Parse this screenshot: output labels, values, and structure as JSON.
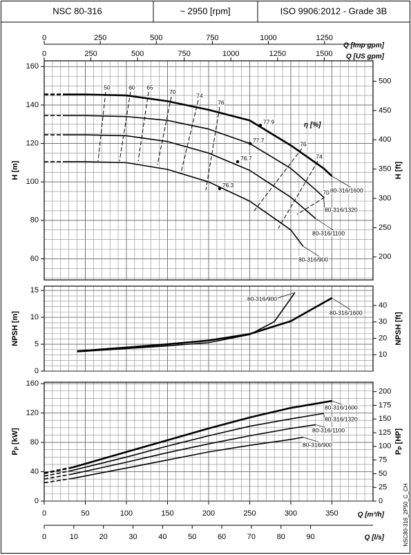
{
  "header": {
    "model": "NSC 80-316",
    "speed": "~ 2950 [rpm]",
    "standard": "ISO 9906:2012 - Grade 3B"
  },
  "code": "NSC80-316_2P50_C_CH",
  "x_axes": [
    {
      "label": "Q [Imp gpm]",
      "xlim": [
        0,
        1466.5
      ],
      "xticks": [
        0,
        250,
        500,
        750,
        1000,
        1250
      ]
    },
    {
      "label": "Q [US gpm]",
      "xlim": [
        0,
        1761.2
      ],
      "xticks": [
        0,
        250,
        500,
        750,
        1000,
        1250,
        1500
      ]
    },
    {
      "label": "Q [m³/h]",
      "xlim": [
        0,
        400
      ],
      "xticks": [
        0,
        50,
        100,
        150,
        200,
        250,
        300,
        350
      ]
    },
    {
      "label": "Q [l/s]",
      "xlim": [
        0,
        111.1
      ],
      "xticks": [
        0,
        10,
        20,
        30,
        40,
        50,
        60,
        70,
        80,
        90
      ]
    }
  ],
  "chart_data": [
    {
      "type": "line",
      "ylabel": "H [m]",
      "y2label": "H [ft]",
      "xlim": [
        0,
        400
      ],
      "ylim": [
        49,
        163
      ],
      "yticks": [
        60,
        80,
        100,
        120,
        140,
        160
      ],
      "y2lim": [
        160.8,
        534.8
      ],
      "y2ticks": [
        200,
        250,
        300,
        350,
        400,
        450,
        500
      ],
      "grid": true,
      "grid_step": [
        10,
        5
      ],
      "dashed_first_segment": true,
      "series": [
        {
          "name": "80-316/1600",
          "color": "#000000",
          "width": 2.6,
          "x": [
            0,
            25,
            50,
            100,
            150,
            200,
            250,
            300,
            340,
            350
          ],
          "values": [
            145.5,
            145.5,
            145.5,
            145,
            142,
            137.5,
            132,
            119,
            107,
            103
          ]
        },
        {
          "name": "80-316/1320",
          "color": "#000000",
          "width": 1.6,
          "x": [
            0,
            25,
            50,
            100,
            150,
            200,
            250,
            300,
            330,
            340
          ],
          "values": [
            134.5,
            134.5,
            134.5,
            134,
            132,
            127.5,
            120,
            107,
            96,
            92
          ]
        },
        {
          "name": "80-316/1100",
          "color": "#000000",
          "width": 1.6,
          "x": [
            0,
            25,
            50,
            100,
            150,
            200,
            250,
            300,
            330
          ],
          "values": [
            124.5,
            124.5,
            124.5,
            124,
            121,
            115,
            106,
            92,
            81
          ]
        },
        {
          "name": "80-316/900",
          "color": "#000000",
          "width": 1.6,
          "x": [
            0,
            25,
            50,
            100,
            150,
            200,
            250,
            300,
            315
          ],
          "values": [
            110.5,
            110.5,
            110.5,
            110,
            106.5,
            100,
            90,
            75,
            66.5
          ]
        }
      ],
      "efficiency": {
        "label": "η [%]",
        "lines": [
          {
            "eta": 50,
            "x": [
              74.8,
              65.5
            ],
            "values": [
              146.8,
              110.8
            ]
          },
          {
            "eta": 60,
            "x": [
              105,
              91.6
            ],
            "values": [
              146.8,
              110.8
            ]
          },
          {
            "eta": 65,
            "x": [
              126.9,
              114.3
            ],
            "values": [
              146.8,
              110.8
            ]
          },
          {
            "eta": 70,
            "x": [
              154.6,
              137.8
            ],
            "values": [
              144.3,
              109
            ]
          },
          {
            "eta": 74,
            "x": [
              187.4,
              166.4
            ],
            "values": [
              142.5,
              104.7
            ]
          },
          {
            "eta": 76,
            "x": [
              213.4,
              196.6
            ],
            "values": [
              138.9,
              95.7
            ]
          },
          {
            "eta": 76,
            "x": [
              313.4,
              255.5
            ],
            "values": [
              117.3,
              85
            ]
          },
          {
            "eta": 74,
            "x": [
              332.8,
              284.9
            ],
            "values": [
              110.8,
              75.9
            ]
          },
          {
            "eta": 70,
            "x": [
              341.2,
              307.6
            ],
            "values": [
              92,
              83.1
            ]
          }
        ],
        "points": [
          {
            "eta": 77.9,
            "x": 263,
            "y": 129.5
          },
          {
            "eta": 77.7,
            "x": 250.4,
            "y": 120
          },
          {
            "eta": 76.7,
            "x": 235.3,
            "y": 110.5
          },
          {
            "eta": 76.3,
            "x": 213.4,
            "y": 96.5
          }
        ]
      }
    },
    {
      "type": "line",
      "ylabel": "NPSH [m]",
      "y2label": "NPSH [ft]",
      "xlim": [
        0,
        400
      ],
      "ylim": [
        0,
        15.8
      ],
      "yticks": [
        0,
        5,
        10,
        15
      ],
      "y2lim": [
        0,
        51.8
      ],
      "y2ticks": [
        10,
        20,
        30,
        40
      ],
      "grid": true,
      "grid_step": [
        10,
        1
      ],
      "dashed_first_segment": false,
      "series": [
        {
          "name": "80-316/1600",
          "color": "#000000",
          "width": 2.6,
          "x": [
            40,
            100,
            150,
            200,
            250,
            300,
            350
          ],
          "values": [
            3.7,
            4.4,
            5.0,
            5.7,
            6.9,
            9.3,
            13.6
          ]
        },
        {
          "name": "80-316/900",
          "color": "#000000",
          "width": 1.6,
          "x": [
            40,
            100,
            150,
            200,
            250,
            280,
            305
          ],
          "values": [
            3.6,
            4.2,
            4.7,
            5.3,
            6.8,
            9.2,
            14.6
          ]
        }
      ]
    },
    {
      "type": "line",
      "ylabel": {
        "main": "P",
        "sub": "P",
        "unit": "[kW]"
      },
      "y2label": {
        "main": "P",
        "sub": "P",
        "unit": "[HP]"
      },
      "xlim": [
        0,
        400
      ],
      "ylim": [
        0,
        162
      ],
      "yticks": [
        0,
        40,
        80,
        120,
        160
      ],
      "y2lim": [
        0,
        217.2
      ],
      "y2ticks": [
        0,
        25,
        50,
        75,
        100,
        125,
        150,
        175,
        200
      ],
      "grid": true,
      "grid_step": [
        10,
        10
      ],
      "dashed_first_segment": true,
      "series": [
        {
          "name": "80-316/1600",
          "color": "#000000",
          "width": 2.6,
          "x": [
            0,
            35,
            100,
            150,
            200,
            250,
            300,
            350
          ],
          "values": [
            38,
            46,
            67,
            83,
            99,
            114,
            127,
            136.5
          ]
        },
        {
          "name": "80-316/1320",
          "color": "#000000",
          "width": 1.6,
          "x": [
            0,
            35,
            100,
            150,
            200,
            250,
            300,
            340
          ],
          "values": [
            34,
            42,
            60,
            75,
            89,
            102,
            112,
            119.5
          ]
        },
        {
          "name": "80-316/1100",
          "color": "#000000",
          "width": 1.6,
          "x": [
            0,
            35,
            100,
            150,
            200,
            250,
            300,
            330
          ],
          "values": [
            30,
            37,
            53,
            66,
            78,
            89,
            99,
            104
          ]
        },
        {
          "name": "80-316/900",
          "color": "#000000",
          "width": 1.6,
          "x": [
            0,
            35,
            100,
            150,
            200,
            250,
            300,
            315
          ],
          "values": [
            25,
            31,
            45,
            56,
            67,
            76,
            84,
            87
          ]
        }
      ]
    }
  ]
}
